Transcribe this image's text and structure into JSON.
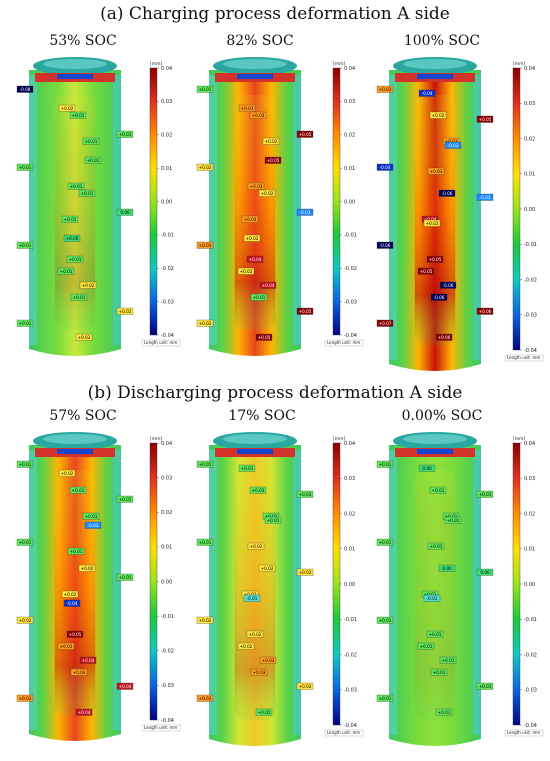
{
  "figure": {
    "title_a": "(a) Charging process deformation A side",
    "title_b": "(b) Discharging process deformation A side"
  },
  "colorbar": {
    "unit": "[mm]",
    "ticks": [
      "0.04",
      "0.03",
      "0.02",
      "0.01",
      "0.00",
      "-0.01",
      "-0.02",
      "-0.03",
      "-0.04"
    ],
    "length_unit": "Length unit: mm",
    "colors": [
      "#8b0000",
      "#e03020",
      "#ff8c00",
      "#ffe000",
      "#9be21c",
      "#1ec83c",
      "#10c8c0",
      "#0a64e6",
      "#000080"
    ]
  },
  "panels": [
    {
      "label": "53% SOC",
      "hot_level": 0.35
    },
    {
      "label": "82% SOC",
      "hot_level": 0.85
    },
    {
      "label": "100% SOC",
      "hot_level": 1.0
    },
    {
      "label": "57% SOC",
      "hot_level": 0.8
    },
    {
      "label": "17% SOC",
      "hot_level": 0.5
    },
    {
      "label": "0.00% SOC",
      "hot_level": 0.15
    }
  ],
  "annotations": {
    "p0": [
      "-0.08",
      "+0.01",
      "+0.01",
      "+0.01",
      "+0.01",
      "+0.01",
      "+0.01",
      "+0.01",
      "+0.01",
      "+0.01",
      "+0.01",
      "+0.02",
      "+0.02",
      "+0.02",
      "+0.02",
      "+0.01",
      "+0.01",
      "+0.01",
      "0.00",
      "+0.00"
    ],
    "p1": [
      "+0.01",
      "+0.03",
      "+0.02",
      "+0.02",
      "+0.02",
      "+0.03",
      "+0.03",
      "+0.02",
      "+0.01",
      "+0.02",
      "+0.04",
      "+0.04",
      "+0.05",
      "+0.05",
      "+0.03",
      "+0.05",
      "+0.05",
      "+0.03",
      "-0.03",
      "+0.02"
    ],
    "p2": [
      "+0.03",
      "+0.02",
      "+0.03",
      "-0.04",
      "-0.06",
      "+0.04",
      "-0.06",
      "+0.05",
      "-0.06",
      "+0.07",
      "+0.05",
      "-0.06",
      "+0.06",
      "+0.06",
      "-0.04",
      "+0.05",
      "-0.03",
      "+0.03",
      "-0.03",
      "+0.02"
    ],
    "p3": [
      "+0.01",
      "+0.01",
      "+0.01",
      "+0.01",
      "+0.02",
      "+0.02",
      "+0.02",
      "+0.03",
      "+0.03",
      "+0.03",
      "+0.05",
      "+0.04",
      "+0.04",
      "+0.04",
      "+0.02",
      "+0.01",
      "-0.03",
      "+0.01",
      "+0.01",
      "-0.04"
    ],
    "p4": [
      "+0.01",
      "+0.01",
      "+0.01",
      "+0.01",
      "+0.02",
      "+0.02",
      "+0.02",
      "+0.02",
      "+0.03",
      "+0.03",
      "+0.02",
      "+0.03",
      "+0.02",
      "+0.01",
      "+0.01",
      "+0.01",
      "+0.01",
      "+0.02",
      "+0.02",
      "-0.01"
    ],
    "p5": [
      "+0.01",
      "+0.01",
      "+0.01",
      "+0.01",
      "0.00",
      "+0.01",
      "+0.01",
      "+0.01",
      "+0.01",
      "+0.01",
      "+0.01",
      "+0.01",
      "+0.01",
      "+0.01",
      "0.00",
      "+0.01",
      "+0.01",
      "+0.01",
      "0.00",
      "-0.01"
    ]
  }
}
